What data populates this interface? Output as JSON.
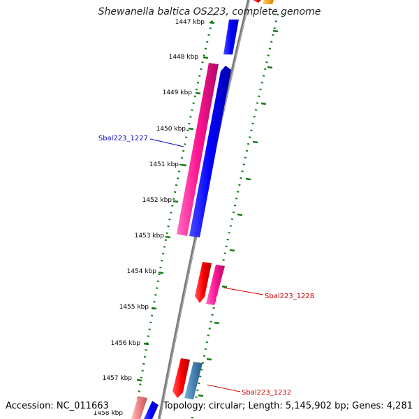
{
  "title": "Shewanella baltica OS223, complete genome",
  "footer": {
    "accession": "Accession: NC_011663",
    "summary": "Topology: circular; Length: 5,145,902 bp; Genes: 4,281"
  },
  "colors": {
    "backbone": "#7a7a7a",
    "tick": "#137c13",
    "label_blue": "#0000cc",
    "label_red": "#cc0000"
  },
  "ticks": [
    {
      "label": "1447 kbp"
    },
    {
      "label": "1448 kbp"
    },
    {
      "label": "1449 kbp"
    },
    {
      "label": "1450 kbp"
    },
    {
      "label": "1451 kbp"
    },
    {
      "label": "1452 kbp"
    },
    {
      "label": "1453 kbp"
    },
    {
      "label": "1454 kbp"
    },
    {
      "label": "1455 kbp"
    },
    {
      "label": "1456 kbp"
    },
    {
      "label": "1457 kbp"
    },
    {
      "label": "1458 kbp"
    }
  ],
  "gene_labels": [
    {
      "text": "Sbal223_1227",
      "color": "#0000cc"
    },
    {
      "text": "Sbal223_1228",
      "color": "#cc0000"
    },
    {
      "text": "Sbal223_1232",
      "color": "#cc0000"
    }
  ]
}
